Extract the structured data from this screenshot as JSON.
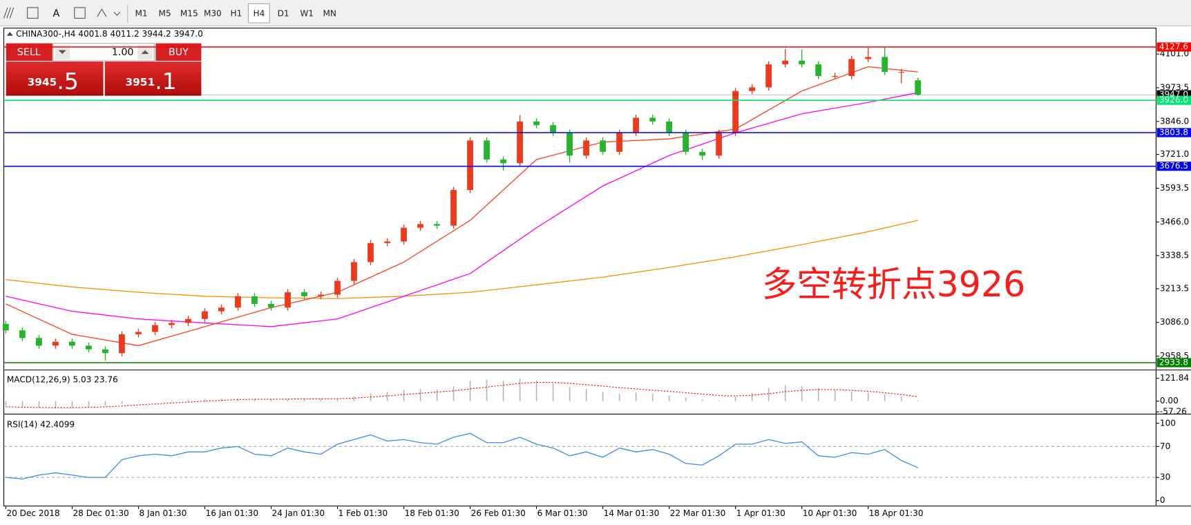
{
  "toolbar": {
    "tools": [
      "A"
    ],
    "timeframes": [
      "M1",
      "M5",
      "M15",
      "M30",
      "H1",
      "H4",
      "D1",
      "W1",
      "MN"
    ]
  },
  "trade_panel": {
    "sell": "SELL",
    "lot": "1.00",
    "buy": "BUY",
    "bid_main": "3945",
    "bid_tail": ".5",
    "ask_main": "3951",
    "ask_tail": ".1"
  },
  "chart_header": "CHINA300-,H4  4001.8 4011.2 3944.2 3947.0",
  "chart_data": [
    {
      "type": "candlestick",
      "x": [
        0,
        0.25,
        0.5,
        0.75,
        1,
        1.25,
        1.5,
        1.75,
        2,
        2.25,
        2.5,
        2.75,
        3,
        3.25,
        3.5,
        3.75,
        4,
        4.25,
        4.5,
        4.75,
        5,
        5.25,
        5.5,
        5.75,
        6,
        6.25,
        6.5,
        6.75,
        7,
        7.25,
        7.5,
        7.75,
        8,
        8.25,
        8.5,
        8.75,
        9,
        9.25,
        9.5,
        9.75,
        10,
        10.25,
        10.5,
        10.75,
        11,
        11.25,
        11.5,
        11.75,
        12,
        12.25,
        12.5,
        12.75,
        13,
        13.25,
        13.5,
        13.75
      ],
      "open": [
        3080,
        3056,
        3027,
        2998,
        3013,
        2998,
        2984,
        2970,
        3041,
        3050,
        3076,
        3084,
        3099,
        3128,
        3142,
        3185,
        3156,
        3142,
        3200,
        3185,
        3191,
        3243,
        3314,
        3386,
        3392,
        3444,
        3458,
        3452,
        3587,
        3774,
        3702,
        3688,
        3846,
        3832,
        3803,
        3717,
        3774,
        3731,
        3803,
        3860,
        3846,
        3803,
        3731,
        3717,
        3803,
        3961,
        3975,
        4062,
        4076,
        4062,
        4018,
        4018,
        4082,
        4090,
        4033,
        4001.8
      ],
      "high": [
        3092,
        3068,
        3039,
        3025,
        3025,
        3010,
        2996,
        3053,
        3062,
        3088,
        3096,
        3111,
        3140,
        3154,
        3197,
        3197,
        3168,
        3212,
        3212,
        3203,
        3255,
        3326,
        3398,
        3404,
        3456,
        3470,
        3470,
        3599,
        3786,
        3786,
        3714,
        3870,
        3858,
        3844,
        3815,
        3786,
        3786,
        3815,
        3872,
        3872,
        3858,
        3815,
        3743,
        3815,
        3973,
        3987,
        4074,
        4120,
        4118,
        4074,
        4030,
        4094,
        4125,
        4127,
        4045,
        4011.2
      ],
      "low": [
        3044,
        3015,
        2986,
        2986,
        2986,
        2972,
        2941,
        2958,
        3029,
        3038,
        3064,
        3072,
        3087,
        3116,
        3130,
        3144,
        3130,
        3130,
        3173,
        3173,
        3179,
        3231,
        3302,
        3374,
        3380,
        3432,
        3440,
        3440,
        3575,
        3690,
        3660,
        3676,
        3820,
        3791,
        3690,
        3705,
        3719,
        3719,
        3791,
        3834,
        3791,
        3719,
        3700,
        3705,
        3791,
        3949,
        3963,
        4050,
        4050,
        4006,
        4006,
        4006,
        4070,
        4021,
        3990,
        3944.2
      ],
      "close": [
        3056,
        3027,
        2998,
        3013,
        2998,
        2984,
        2970,
        3041,
        3050,
        3076,
        3084,
        3099,
        3128,
        3142,
        3185,
        3156,
        3142,
        3200,
        3185,
        3191,
        3243,
        3314,
        3386,
        3392,
        3444,
        3458,
        3452,
        3587,
        3774,
        3702,
        3688,
        3846,
        3832,
        3803,
        3717,
        3774,
        3731,
        3803,
        3860,
        3846,
        3803,
        3731,
        3717,
        3803,
        3961,
        3975,
        4062,
        4076,
        4062,
        4018,
        4018,
        4082,
        4090,
        4033,
        4033,
        3947.0
      ],
      "up_color": "#ee3a1c",
      "down_color": "#25b52c",
      "moving_averages": [
        {
          "color": "#ff8c00",
          "x": [
            0,
            1,
            2,
            3,
            4,
            5,
            6,
            7,
            8,
            9,
            10,
            11,
            12,
            13,
            13.75
          ],
          "values": [
            3248,
            3220,
            3200,
            3185,
            3179,
            3176,
            3185,
            3200,
            3228,
            3257,
            3294,
            3334,
            3380,
            3429,
            3472
          ]
        },
        {
          "color": "#ff00ff",
          "x": [
            0,
            1,
            2,
            3,
            4,
            5,
            6,
            7,
            8,
            9,
            10,
            11,
            12,
            13,
            13.75
          ],
          "values": [
            3185,
            3128,
            3099,
            3084,
            3070,
            3099,
            3185,
            3271,
            3444,
            3602,
            3717,
            3803,
            3875,
            3918,
            3955
          ]
        },
        {
          "color": "#ff4020",
          "x": [
            0,
            1,
            2,
            3,
            4,
            5,
            6,
            7,
            8,
            9,
            10,
            11,
            12,
            13,
            13.75
          ],
          "values": [
            3156,
            3041,
            2998,
            3070,
            3142,
            3200,
            3314,
            3472,
            3702,
            3768,
            3780,
            3817,
            3961,
            4053,
            4033
          ]
        }
      ],
      "price_lines": [
        {
          "value": 4127.6,
          "label": "4127.6",
          "color": "#ff0000"
        },
        {
          "value": 3947.0,
          "label": "3947.0",
          "color": "#000000"
        },
        {
          "value": 3926.0,
          "label": "3926.0",
          "color": "#00e676"
        },
        {
          "value": 3803.8,
          "label": "3803.8",
          "color": "#0000ff"
        },
        {
          "value": 3676.5,
          "label": "3676.5",
          "color": "#0000ff"
        },
        {
          "value": 2933.8,
          "label": "2933.8",
          "color": "#008000"
        }
      ],
      "annotation": {
        "text": "多空转折点3926",
        "color": "#ff1a1a"
      },
      "xlim": [
        -0.03,
        17.34
      ],
      "ylim": [
        2906,
        4199
      ],
      "yticks": [
        {
          "value": 4101,
          "label": "4101.0"
        },
        {
          "value": 3973.5,
          "label": "3973.5"
        },
        {
          "value": 3846,
          "label": "3846.0"
        },
        {
          "value": 3721,
          "label": "3721.0"
        },
        {
          "value": 3593.5,
          "label": "3593.5"
        },
        {
          "value": 3466,
          "label": "3466.0"
        },
        {
          "value": 3338.5,
          "label": "3338.5"
        },
        {
          "value": 3213.5,
          "label": "3213.5"
        },
        {
          "value": 3086,
          "label": "3086.0"
        },
        {
          "value": 2958.5,
          "label": "2958.5"
        }
      ]
    },
    {
      "type": "macd",
      "title": "MACD(12,26,9) 5.03 23.76",
      "x": [
        0,
        0.25,
        0.5,
        0.75,
        1,
        1.25,
        1.5,
        1.75,
        2,
        2.25,
        2.5,
        2.75,
        3,
        3.25,
        3.5,
        3.75,
        4,
        4.25,
        4.5,
        4.75,
        5,
        5.25,
        5.5,
        5.75,
        6,
        6.25,
        6.5,
        6.75,
        7,
        7.25,
        7.5,
        7.75,
        8,
        8.25,
        8.5,
        8.75,
        9,
        9.25,
        9.5,
        9.75,
        10,
        10.25,
        10.5,
        10.75,
        11,
        11.25,
        11.5,
        11.75,
        12,
        12.25,
        12.5,
        12.75,
        13,
        13.25,
        13.5,
        13.75
      ],
      "histogram": [
        -25,
        -30,
        -35,
        -38,
        -35,
        -30,
        -25,
        -15,
        -5,
        0,
        5,
        8,
        10,
        12,
        15,
        12,
        10,
        12,
        15,
        13,
        15,
        25,
        40,
        50,
        60,
        65,
        62,
        80,
        110,
        115,
        110,
        120,
        110,
        95,
        75,
        65,
        50,
        40,
        45,
        40,
        30,
        20,
        10,
        5,
        25,
        45,
        70,
        85,
        80,
        70,
        60,
        50,
        45,
        35,
        25,
        5.03
      ],
      "signal": [
        -30,
        -32,
        -34,
        -35,
        -35,
        -33,
        -30,
        -26,
        -20,
        -15,
        -10,
        -5,
        0,
        4,
        8,
        10,
        10,
        11,
        12,
        12,
        13,
        16,
        22,
        28,
        35,
        42,
        48,
        55,
        65,
        75,
        85,
        95,
        100,
        100,
        95,
        88,
        80,
        72,
        65,
        58,
        52,
        45,
        38,
        30,
        28,
        32,
        40,
        50,
        58,
        62,
        62,
        58,
        52,
        45,
        35,
        23.76
      ],
      "histogram_color": "#b4b4b4",
      "signal_color": "#ff0000",
      "xlim": [
        -0.03,
        17.34
      ],
      "ylim": [
        -69,
        158
      ],
      "yticks": [
        121.84,
        {
          "value": 0,
          "label": "0.00"
        },
        -57.26
      ]
    },
    {
      "type": "line",
      "title": "RSI(14) 42.4099",
      "x": [
        0,
        0.25,
        0.5,
        0.75,
        1,
        1.25,
        1.5,
        1.75,
        2,
        2.25,
        2.5,
        2.75,
        3,
        3.25,
        3.5,
        3.75,
        4,
        4.25,
        4.5,
        4.75,
        5,
        5.25,
        5.5,
        5.75,
        6,
        6.25,
        6.5,
        6.75,
        7,
        7.25,
        7.5,
        7.75,
        8,
        8.25,
        8.5,
        8.75,
        9,
        9.25,
        9.5,
        9.75,
        10,
        10.25,
        10.5,
        10.75,
        11,
        11.25,
        11.5,
        11.75,
        12,
        12.25,
        12.5,
        12.75,
        13,
        13.25,
        13.5,
        13.75
      ],
      "values": [
        30,
        28,
        33,
        36,
        33,
        30,
        30,
        53,
        58,
        60,
        58,
        63,
        63,
        68,
        70,
        60,
        58,
        68,
        63,
        60,
        73,
        79,
        85,
        77,
        79,
        75,
        73,
        82,
        87,
        75,
        75,
        82,
        73,
        68,
        58,
        63,
        56,
        68,
        63,
        66,
        60,
        48,
        46,
        58,
        73,
        73,
        79,
        74,
        76,
        58,
        56,
        62,
        60,
        66,
        52,
        42.4099
      ],
      "color": "#3c8ce6",
      "levels": [
        70,
        30
      ],
      "xlim": [
        -0.03,
        17.34
      ],
      "ylim": [
        -7,
        108
      ],
      "yticks": [
        100,
        70,
        30,
        0
      ],
      "xticks": [
        {
          "value": 0,
          "label": "20 Dec 2018"
        },
        {
          "value": 1,
          "label": "28 Dec 01:30"
        },
        {
          "value": 2,
          "label": "8 Jan 01:30"
        },
        {
          "value": 3,
          "label": "16 Jan 01:30"
        },
        {
          "value": 4,
          "label": "24 Jan 01:30"
        },
        {
          "value": 5,
          "label": "1 Feb 01:30"
        },
        {
          "value": 6,
          "label": "18 Feb 01:30"
        },
        {
          "value": 7,
          "label": "26 Feb 01:30"
        },
        {
          "value": 8,
          "label": "6 Mar 01:30"
        },
        {
          "value": 9,
          "label": "14 Mar 01:30"
        },
        {
          "value": 10,
          "label": "22 Mar 01:30"
        },
        {
          "value": 11,
          "label": "1 Apr 01:30"
        },
        {
          "value": 12,
          "label": "10 Apr 01:30"
        },
        {
          "value": 13,
          "label": "18 Apr 01:30"
        }
      ]
    }
  ]
}
